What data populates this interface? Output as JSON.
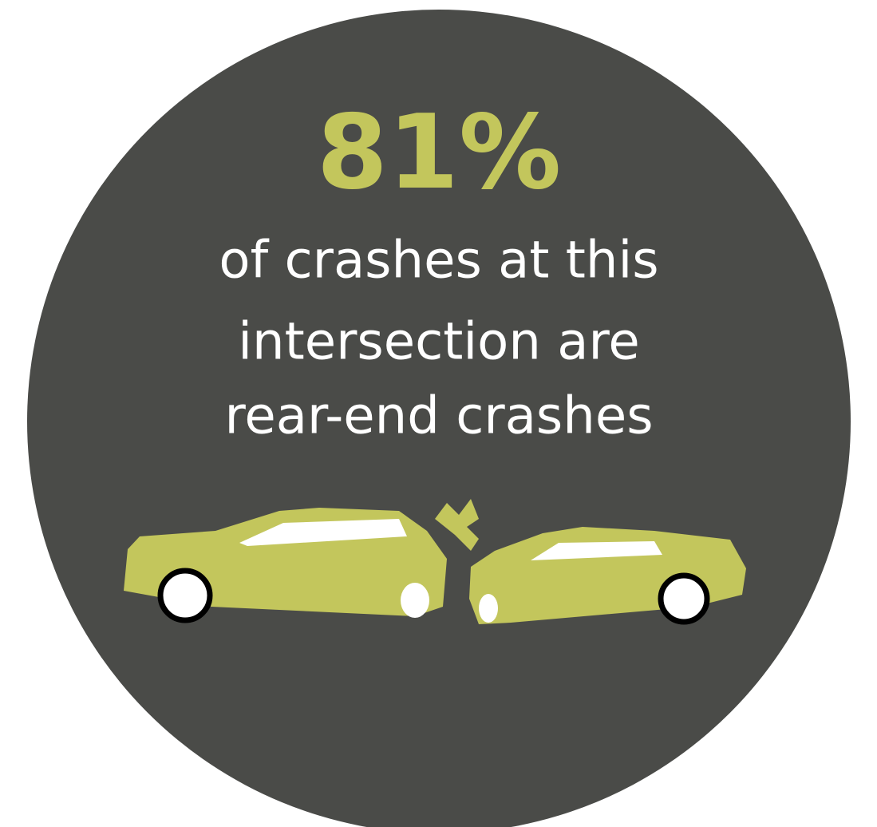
{
  "stat": "81%",
  "description": [
    "of crashes at this",
    "intersection are",
    "rear-end crashes"
  ]
}
